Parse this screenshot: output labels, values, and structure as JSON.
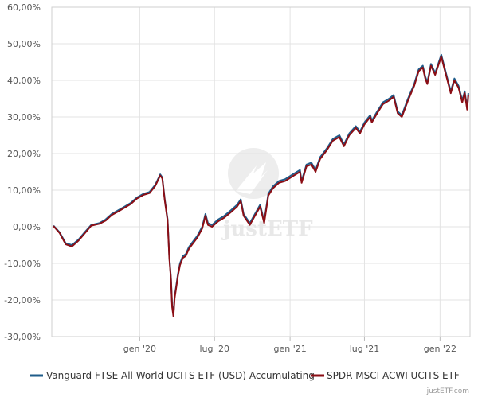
{
  "chart_data": {
    "type": "line",
    "title": "",
    "xlabel": "",
    "ylabel": "",
    "ylim": [
      -30,
      60
    ],
    "y_ticks": [
      -30,
      -20,
      -10,
      0,
      10,
      20,
      30,
      40,
      50,
      60
    ],
    "y_tick_labels": [
      "-30,00%",
      "-20,00%",
      "-10,00%",
      "0,00%",
      "10,00%",
      "20,00%",
      "30,00%",
      "40,00%",
      "50,00%",
      "60,00%"
    ],
    "x_range": [
      "2019-06-01",
      "2022-03-15"
    ],
    "x_ticks": [
      "2020-01-01",
      "2020-07-01",
      "2021-01-01",
      "2021-07-01",
      "2022-01-01"
    ],
    "x_tick_labels": [
      "gen '20",
      "lug '20",
      "gen '21",
      "lug '21",
      "gen '22"
    ],
    "grid": true,
    "legend_position": "bottom",
    "series": [
      {
        "name": "Vanguard FTSE All-World UCITS ETF (USD) Accumulating",
        "color": "#1f5c8a",
        "points": [
          [
            "2019-06-05",
            0.3
          ],
          [
            "2019-06-20",
            -1.5
          ],
          [
            "2019-07-05",
            -4.5
          ],
          [
            "2019-07-20",
            -5.0
          ],
          [
            "2019-08-05",
            -3.5
          ],
          [
            "2019-08-20",
            -1.5
          ],
          [
            "2019-09-05",
            0.5
          ],
          [
            "2019-09-25",
            1.0
          ],
          [
            "2019-10-10",
            2.0
          ],
          [
            "2019-10-25",
            3.5
          ],
          [
            "2019-11-10",
            4.5
          ],
          [
            "2019-11-25",
            5.5
          ],
          [
            "2019-12-10",
            6.5
          ],
          [
            "2019-12-25",
            8.0
          ],
          [
            "2020-01-10",
            9.0
          ],
          [
            "2020-01-25",
            9.5
          ],
          [
            "2020-02-08",
            11.5
          ],
          [
            "2020-02-20",
            14.3
          ],
          [
            "2020-02-25",
            13.5
          ],
          [
            "2020-03-02",
            7.5
          ],
          [
            "2020-03-09",
            2.0
          ],
          [
            "2020-03-13",
            -8.0
          ],
          [
            "2020-03-17",
            -14.0
          ],
          [
            "2020-03-20",
            -21.5
          ],
          [
            "2020-03-23",
            -24.0
          ],
          [
            "2020-03-26",
            -19.0
          ],
          [
            "2020-03-30",
            -16.0
          ],
          [
            "2020-04-03",
            -13.0
          ],
          [
            "2020-04-08",
            -10.0
          ],
          [
            "2020-04-15",
            -8.0
          ],
          [
            "2020-04-22",
            -7.5
          ],
          [
            "2020-04-30",
            -5.5
          ],
          [
            "2020-05-10",
            -4.0
          ],
          [
            "2020-05-20",
            -2.5
          ],
          [
            "2020-06-01",
            0.0
          ],
          [
            "2020-06-09",
            3.5
          ],
          [
            "2020-06-15",
            1.0
          ],
          [
            "2020-06-25",
            0.5
          ],
          [
            "2020-07-10",
            2.0
          ],
          [
            "2020-07-25",
            3.0
          ],
          [
            "2020-08-10",
            4.5
          ],
          [
            "2020-08-25",
            6.0
          ],
          [
            "2020-09-03",
            7.5
          ],
          [
            "2020-09-10",
            3.5
          ],
          [
            "2020-09-25",
            1.0
          ],
          [
            "2020-10-10",
            4.0
          ],
          [
            "2020-10-20",
            6.0
          ],
          [
            "2020-10-30",
            1.5
          ],
          [
            "2020-11-09",
            9.0
          ],
          [
            "2020-11-20",
            11.0
          ],
          [
            "2020-12-05",
            12.5
          ],
          [
            "2020-12-20",
            13.0
          ],
          [
            "2021-01-10",
            14.5
          ],
          [
            "2021-01-25",
            15.5
          ],
          [
            "2021-01-29",
            12.5
          ],
          [
            "2021-02-10",
            17.0
          ],
          [
            "2021-02-22",
            17.5
          ],
          [
            "2021-03-04",
            15.5
          ],
          [
            "2021-03-15",
            19.0
          ],
          [
            "2021-04-01",
            21.5
          ],
          [
            "2021-04-15",
            24.0
          ],
          [
            "2021-05-01",
            25.0
          ],
          [
            "2021-05-12",
            22.5
          ],
          [
            "2021-05-25",
            25.5
          ],
          [
            "2021-06-10",
            27.5
          ],
          [
            "2021-06-20",
            26.0
          ],
          [
            "2021-07-01",
            28.5
          ],
          [
            "2021-07-15",
            30.5
          ],
          [
            "2021-07-19",
            29.0
          ],
          [
            "2021-08-01",
            31.5
          ],
          [
            "2021-08-15",
            34.0
          ],
          [
            "2021-08-30",
            35.0
          ],
          [
            "2021-09-10",
            36.0
          ],
          [
            "2021-09-20",
            31.5
          ],
          [
            "2021-09-30",
            30.5
          ],
          [
            "2021-10-15",
            35.0
          ],
          [
            "2021-10-30",
            39.0
          ],
          [
            "2021-11-10",
            43.0
          ],
          [
            "2021-11-20",
            44.0
          ],
          [
            "2021-11-26",
            41.0
          ],
          [
            "2021-12-01",
            39.5
          ],
          [
            "2021-12-10",
            44.5
          ],
          [
            "2021-12-20",
            42.0
          ],
          [
            "2022-01-04",
            47.0
          ],
          [
            "2022-01-12",
            43.5
          ],
          [
            "2022-01-20",
            40.0
          ],
          [
            "2022-01-27",
            37.0
          ],
          [
            "2022-02-05",
            40.5
          ],
          [
            "2022-02-15",
            38.5
          ],
          [
            "2022-02-24",
            34.5
          ],
          [
            "2022-03-02",
            37.0
          ],
          [
            "2022-03-08",
            32.5
          ],
          [
            "2022-03-11",
            36.5
          ]
        ]
      },
      {
        "name": "SPDR MSCI ACWI UCITS ETF",
        "color": "#8b0e15",
        "points": [
          [
            "2019-06-05",
            0.2
          ],
          [
            "2019-06-20",
            -1.7
          ],
          [
            "2019-07-05",
            -4.8
          ],
          [
            "2019-07-20",
            -5.4
          ],
          [
            "2019-08-05",
            -3.8
          ],
          [
            "2019-08-20",
            -1.8
          ],
          [
            "2019-09-05",
            0.3
          ],
          [
            "2019-09-25",
            0.8
          ],
          [
            "2019-10-10",
            1.7
          ],
          [
            "2019-10-25",
            3.2
          ],
          [
            "2019-11-10",
            4.2
          ],
          [
            "2019-11-25",
            5.2
          ],
          [
            "2019-12-10",
            6.2
          ],
          [
            "2019-12-25",
            7.7
          ],
          [
            "2020-01-10",
            8.7
          ],
          [
            "2020-01-25",
            9.2
          ],
          [
            "2020-02-08",
            11.2
          ],
          [
            "2020-02-20",
            14.0
          ],
          [
            "2020-02-25",
            13.2
          ],
          [
            "2020-03-02",
            7.2
          ],
          [
            "2020-03-09",
            1.6
          ],
          [
            "2020-03-13",
            -8.4
          ],
          [
            "2020-03-17",
            -14.5
          ],
          [
            "2020-03-20",
            -22.0
          ],
          [
            "2020-03-23",
            -24.5
          ],
          [
            "2020-03-26",
            -19.5
          ],
          [
            "2020-03-30",
            -16.5
          ],
          [
            "2020-04-03",
            -13.5
          ],
          [
            "2020-04-08",
            -10.5
          ],
          [
            "2020-04-15",
            -8.5
          ],
          [
            "2020-04-22",
            -8.0
          ],
          [
            "2020-04-30",
            -6.0
          ],
          [
            "2020-05-10",
            -4.5
          ],
          [
            "2020-05-20",
            -3.0
          ],
          [
            "2020-06-01",
            -0.5
          ],
          [
            "2020-06-09",
            3.0
          ],
          [
            "2020-06-15",
            0.5
          ],
          [
            "2020-06-25",
            0.0
          ],
          [
            "2020-07-10",
            1.5
          ],
          [
            "2020-07-25",
            2.5
          ],
          [
            "2020-08-10",
            4.0
          ],
          [
            "2020-08-25",
            5.5
          ],
          [
            "2020-09-03",
            7.0
          ],
          [
            "2020-09-10",
            3.0
          ],
          [
            "2020-09-25",
            0.5
          ],
          [
            "2020-10-10",
            3.5
          ],
          [
            "2020-10-20",
            5.5
          ],
          [
            "2020-10-30",
            1.0
          ],
          [
            "2020-11-09",
            8.5
          ],
          [
            "2020-11-20",
            10.5
          ],
          [
            "2020-12-05",
            12.0
          ],
          [
            "2020-12-20",
            12.5
          ],
          [
            "2021-01-10",
            14.0
          ],
          [
            "2021-01-25",
            15.0
          ],
          [
            "2021-01-29",
            12.0
          ],
          [
            "2021-02-10",
            16.5
          ],
          [
            "2021-02-22",
            17.0
          ],
          [
            "2021-03-04",
            15.0
          ],
          [
            "2021-03-15",
            18.5
          ],
          [
            "2021-04-01",
            21.0
          ],
          [
            "2021-04-15",
            23.5
          ],
          [
            "2021-05-01",
            24.5
          ],
          [
            "2021-05-12",
            22.0
          ],
          [
            "2021-05-25",
            25.0
          ],
          [
            "2021-06-10",
            27.0
          ],
          [
            "2021-06-20",
            25.5
          ],
          [
            "2021-07-01",
            28.0
          ],
          [
            "2021-07-15",
            30.0
          ],
          [
            "2021-07-19",
            28.5
          ],
          [
            "2021-08-01",
            31.0
          ],
          [
            "2021-08-15",
            33.5
          ],
          [
            "2021-08-30",
            34.5
          ],
          [
            "2021-09-10",
            35.5
          ],
          [
            "2021-09-20",
            31.0
          ],
          [
            "2021-09-30",
            30.0
          ],
          [
            "2021-10-15",
            34.5
          ],
          [
            "2021-10-30",
            38.5
          ],
          [
            "2021-11-10",
            42.5
          ],
          [
            "2021-11-20",
            43.5
          ],
          [
            "2021-11-26",
            40.5
          ],
          [
            "2021-12-01",
            39.0
          ],
          [
            "2021-12-10",
            44.0
          ],
          [
            "2021-12-20",
            41.5
          ],
          [
            "2022-01-04",
            46.5
          ],
          [
            "2022-01-12",
            43.0
          ],
          [
            "2022-01-20",
            39.5
          ],
          [
            "2022-01-27",
            36.5
          ],
          [
            "2022-02-05",
            40.0
          ],
          [
            "2022-02-15",
            38.0
          ],
          [
            "2022-02-24",
            34.0
          ],
          [
            "2022-03-02",
            36.5
          ],
          [
            "2022-03-08",
            32.0
          ],
          [
            "2022-03-11",
            36.0
          ]
        ]
      }
    ]
  },
  "watermark": {
    "logo_text": "justETF"
  },
  "credit": "justETF.com"
}
